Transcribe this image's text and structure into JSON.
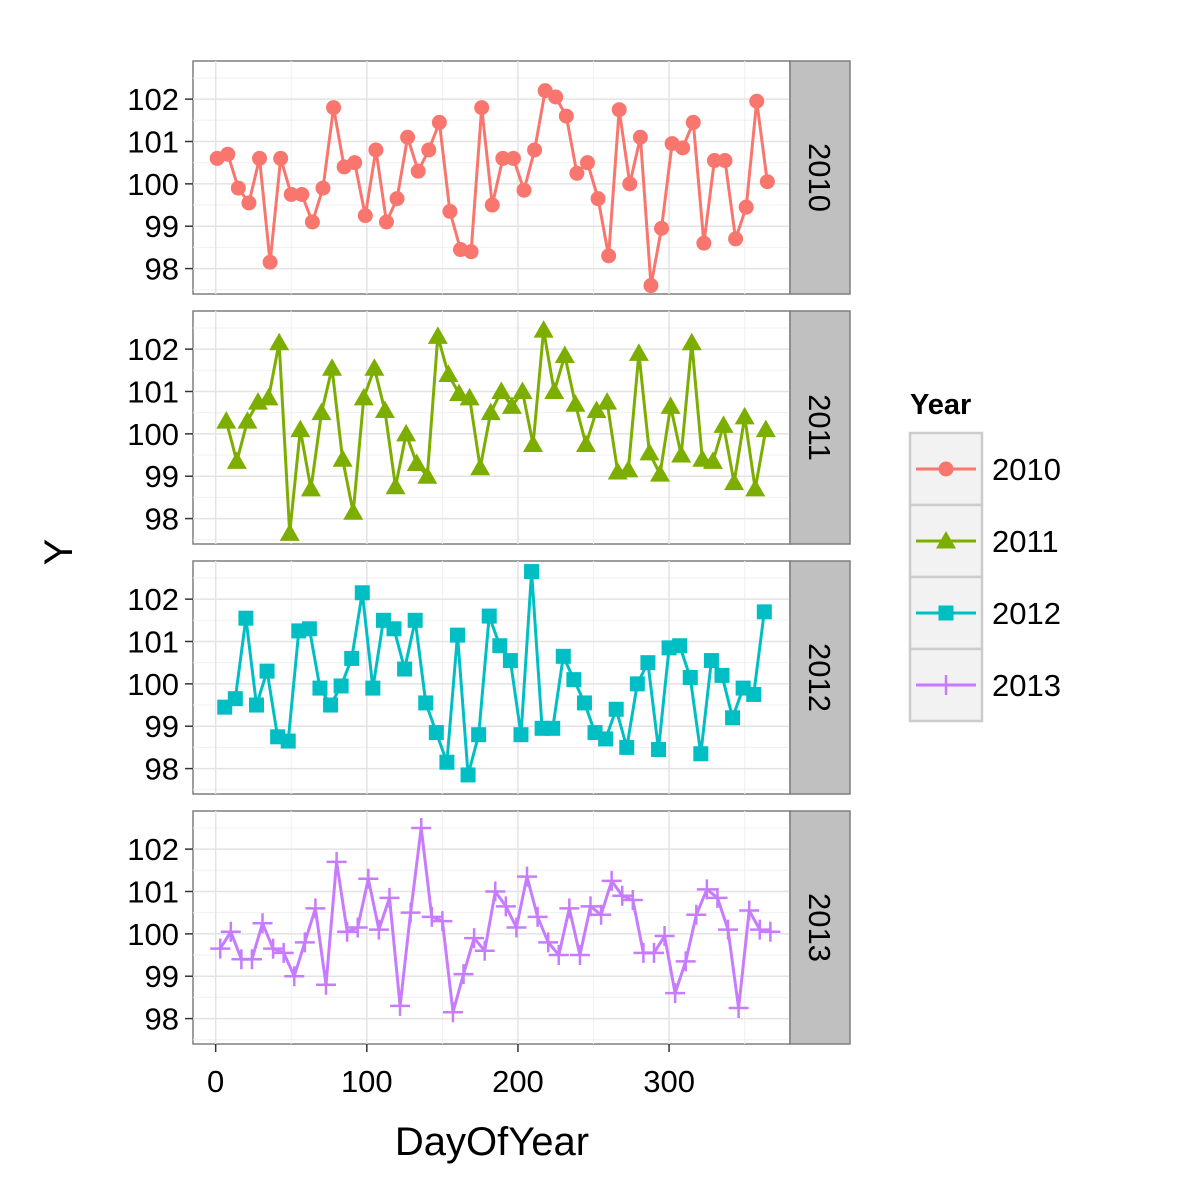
{
  "chart_data": {
    "type": "line",
    "xlabel": "DayOfYear",
    "ylabel": "Y",
    "xlim": [
      -15,
      380
    ],
    "ylim": [
      97.4,
      102.9
    ],
    "x_ticks": [
      0,
      100,
      200,
      300
    ],
    "x_tick_labels": [
      "0",
      "100",
      "200",
      "300"
    ],
    "y_ticks": [
      98,
      99,
      100,
      101,
      102
    ],
    "y_tick_labels": [
      "98",
      "99",
      "100",
      "101",
      "102"
    ],
    "facets": [
      "2010",
      "2011",
      "2012",
      "2013"
    ],
    "grid": true,
    "legend": {
      "title": "Year",
      "position": "right"
    },
    "colors": {
      "2010": "#F8766D",
      "2011": "#7CAE00",
      "2012": "#00BFC4",
      "2013": "#C77CFF"
    },
    "markers": {
      "2010": "circle",
      "2011": "triangle",
      "2012": "square",
      "2013": "plus"
    },
    "series": [
      {
        "name": "2010",
        "x": [
          1,
          8,
          15,
          22,
          29,
          36,
          43,
          50,
          57,
          64,
          71,
          78,
          85,
          92,
          99,
          106,
          113,
          120,
          127,
          134,
          141,
          148,
          155,
          162,
          169,
          176,
          183,
          190,
          197,
          204,
          211,
          218,
          225,
          232,
          239,
          246,
          253,
          260,
          267,
          274,
          281,
          288,
          295,
          302,
          309,
          316,
          323,
          330,
          337,
          344,
          351,
          358,
          365
        ],
        "values": [
          100.6,
          100.7,
          99.9,
          99.55,
          100.6,
          98.15,
          100.6,
          99.75,
          99.75,
          99.1,
          99.9,
          101.8,
          100.4,
          100.5,
          99.25,
          100.8,
          99.1,
          99.65,
          101.1,
          100.3,
          100.8,
          101.45,
          99.35,
          98.45,
          98.4,
          101.8,
          99.5,
          100.6,
          100.6,
          99.85,
          100.8,
          102.2,
          102.05,
          101.6,
          100.25,
          100.5,
          99.65,
          98.3,
          101.75,
          100.0,
          101.1,
          97.6,
          98.95,
          100.95,
          100.85,
          101.45,
          98.6,
          100.55,
          100.55,
          98.7,
          99.45,
          101.95,
          100.05
        ]
      },
      {
        "name": "2011",
        "x": [
          7,
          14,
          21,
          28,
          35,
          42,
          49,
          56,
          63,
          70,
          77,
          84,
          91,
          98,
          105,
          112,
          119,
          126,
          133,
          140,
          147,
          154,
          161,
          168,
          175,
          182,
          189,
          196,
          203,
          210,
          217,
          224,
          231,
          238,
          245,
          252,
          259,
          266,
          273,
          280,
          287,
          294,
          301,
          308,
          315,
          322,
          329,
          336,
          343,
          350,
          357,
          364
        ],
        "values": [
          100.3,
          99.35,
          100.3,
          100.75,
          100.85,
          102.15,
          97.65,
          100.1,
          98.7,
          100.5,
          101.55,
          99.4,
          98.15,
          100.85,
          101.55,
          100.55,
          98.75,
          100.0,
          99.3,
          99.0,
          102.3,
          101.4,
          100.95,
          100.85,
          99.2,
          100.5,
          101.0,
          100.65,
          101.0,
          99.75,
          102.45,
          101.0,
          101.85,
          100.7,
          99.75,
          100.55,
          100.75,
          99.1,
          99.15,
          101.9,
          99.55,
          99.05,
          100.65,
          99.5,
          102.15,
          99.4,
          99.35,
          100.2,
          98.85,
          100.4,
          98.7,
          100.1
        ]
      },
      {
        "name": "2012",
        "x": [
          6,
          13,
          20,
          27,
          34,
          41,
          48,
          55,
          62,
          69,
          76,
          83,
          90,
          97,
          104,
          111,
          118,
          125,
          132,
          139,
          146,
          153,
          160,
          167,
          174,
          181,
          188,
          195,
          202,
          209,
          216,
          223,
          230,
          237,
          244,
          251,
          258,
          265,
          272,
          279,
          286,
          293,
          300,
          307,
          314,
          321,
          328,
          335,
          342,
          349,
          356,
          363
        ],
        "values": [
          99.45,
          99.65,
          101.55,
          99.5,
          100.3,
          98.75,
          98.65,
          101.25,
          101.3,
          99.9,
          99.5,
          99.95,
          100.6,
          102.15,
          99.9,
          101.5,
          101.3,
          100.35,
          101.5,
          99.55,
          98.85,
          98.15,
          101.15,
          97.85,
          98.8,
          101.6,
          100.9,
          100.55,
          98.8,
          102.65,
          98.95,
          98.95,
          100.65,
          100.1,
          99.55,
          98.85,
          98.7,
          99.4,
          98.5,
          100.0,
          100.5,
          98.45,
          100.85,
          100.9,
          100.15,
          98.35,
          100.55,
          100.2,
          99.2,
          99.9,
          99.75,
          101.7
        ]
      },
      {
        "name": "2013",
        "x": [
          3,
          10,
          17,
          24,
          31,
          38,
          45,
          52,
          59,
          66,
          73,
          80,
          87,
          94,
          101,
          108,
          115,
          122,
          129,
          136,
          143,
          150,
          157,
          164,
          171,
          178,
          185,
          192,
          199,
          206,
          213,
          220,
          227,
          234,
          241,
          248,
          255,
          262,
          269,
          276,
          283,
          290,
          297,
          304,
          311,
          318,
          325,
          332,
          339,
          346,
          353,
          360,
          367
        ],
        "values": [
          99.65,
          100.05,
          99.4,
          99.4,
          100.25,
          99.65,
          99.55,
          99.0,
          99.8,
          100.6,
          98.8,
          101.7,
          100.05,
          100.15,
          101.3,
          100.1,
          100.85,
          98.3,
          100.5,
          102.5,
          100.4,
          100.3,
          98.15,
          99.05,
          99.9,
          99.6,
          101.0,
          100.65,
          100.15,
          101.35,
          100.4,
          99.8,
          99.5,
          100.6,
          99.5,
          100.65,
          100.45,
          101.25,
          100.9,
          100.8,
          99.55,
          99.55,
          99.95,
          98.6,
          99.35,
          100.45,
          101.05,
          100.85,
          100.1,
          98.25,
          100.55,
          100.1,
          100.05
        ]
      }
    ]
  }
}
